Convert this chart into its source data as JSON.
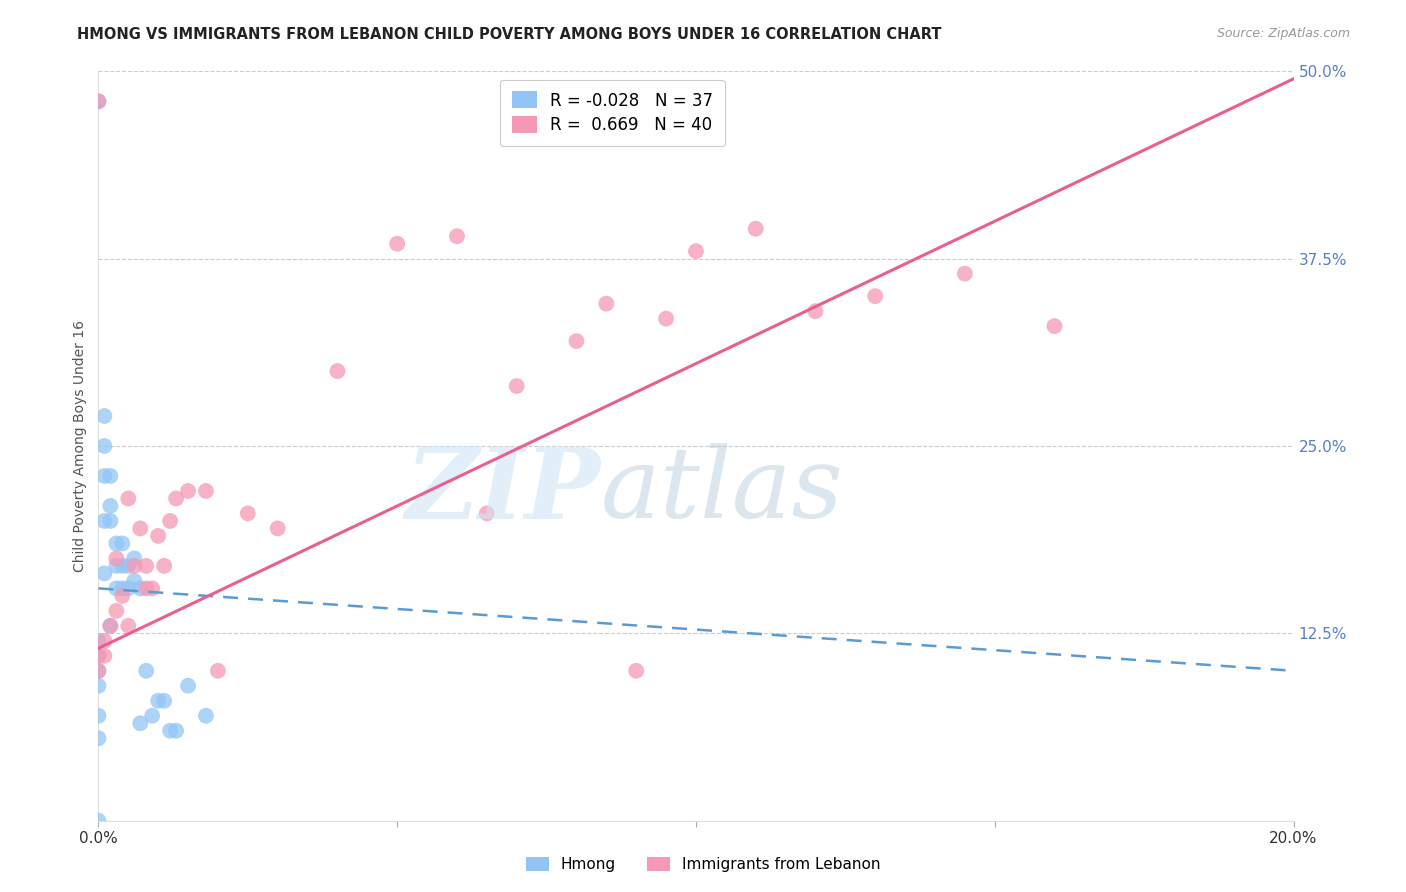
{
  "title": "HMONG VS IMMIGRANTS FROM LEBANON CHILD POVERTY AMONG BOYS UNDER 16 CORRELATION CHART",
  "source": "Source: ZipAtlas.com",
  "ylabel": "Child Poverty Among Boys Under 16",
  "hmong_R": -0.028,
  "hmong_N": 37,
  "lebanon_R": 0.669,
  "lebanon_N": 40,
  "hmong_color": "#92C5F5",
  "lebanon_color": "#F598B4",
  "hmong_line_color": "#5A9BD4",
  "lebanon_line_color": "#E86090",
  "background_color": "#FFFFFF",
  "grid_color": "#CCCCCC",
  "xlim": [
    0.0,
    0.2
  ],
  "ylim": [
    0.0,
    0.5
  ],
  "hmong_x": [
    0.0,
    0.0,
    0.0,
    0.0,
    0.0,
    0.0,
    0.0,
    0.0,
    0.001,
    0.001,
    0.001,
    0.001,
    0.001,
    0.002,
    0.002,
    0.002,
    0.002,
    0.003,
    0.003,
    0.003,
    0.004,
    0.004,
    0.004,
    0.005,
    0.005,
    0.006,
    0.006,
    0.007,
    0.007,
    0.008,
    0.009,
    0.01,
    0.011,
    0.012,
    0.013,
    0.015,
    0.018
  ],
  "hmong_y": [
    0.0,
    0.48,
    0.09,
    0.1,
    0.11,
    0.12,
    0.055,
    0.07,
    0.2,
    0.23,
    0.25,
    0.27,
    0.165,
    0.2,
    0.21,
    0.23,
    0.13,
    0.155,
    0.17,
    0.185,
    0.155,
    0.17,
    0.185,
    0.155,
    0.17,
    0.16,
    0.175,
    0.155,
    0.065,
    0.1,
    0.07,
    0.08,
    0.08,
    0.06,
    0.06,
    0.09,
    0.07
  ],
  "lebanon_x": [
    0.0,
    0.0,
    0.0,
    0.001,
    0.001,
    0.002,
    0.003,
    0.003,
    0.004,
    0.005,
    0.005,
    0.006,
    0.007,
    0.008,
    0.008,
    0.009,
    0.01,
    0.011,
    0.012,
    0.013,
    0.015,
    0.018,
    0.02,
    0.025,
    0.03,
    0.04,
    0.05,
    0.06,
    0.065,
    0.07,
    0.08,
    0.085,
    0.09,
    0.095,
    0.1,
    0.11,
    0.12,
    0.13,
    0.145,
    0.16
  ],
  "lebanon_y": [
    0.48,
    0.1,
    0.11,
    0.11,
    0.12,
    0.13,
    0.14,
    0.175,
    0.15,
    0.13,
    0.215,
    0.17,
    0.195,
    0.155,
    0.17,
    0.155,
    0.19,
    0.17,
    0.2,
    0.215,
    0.22,
    0.22,
    0.1,
    0.205,
    0.195,
    0.3,
    0.385,
    0.39,
    0.205,
    0.29,
    0.32,
    0.345,
    0.1,
    0.335,
    0.38,
    0.395,
    0.34,
    0.35,
    0.365,
    0.33
  ],
  "hmong_line_x0": 0.0,
  "hmong_line_x1": 0.2,
  "hmong_line_y0": 0.155,
  "hmong_line_y1": 0.1,
  "lebanon_line_x0": 0.0,
  "lebanon_line_x1": 0.2,
  "lebanon_line_y0": 0.115,
  "lebanon_line_y1": 0.495
}
